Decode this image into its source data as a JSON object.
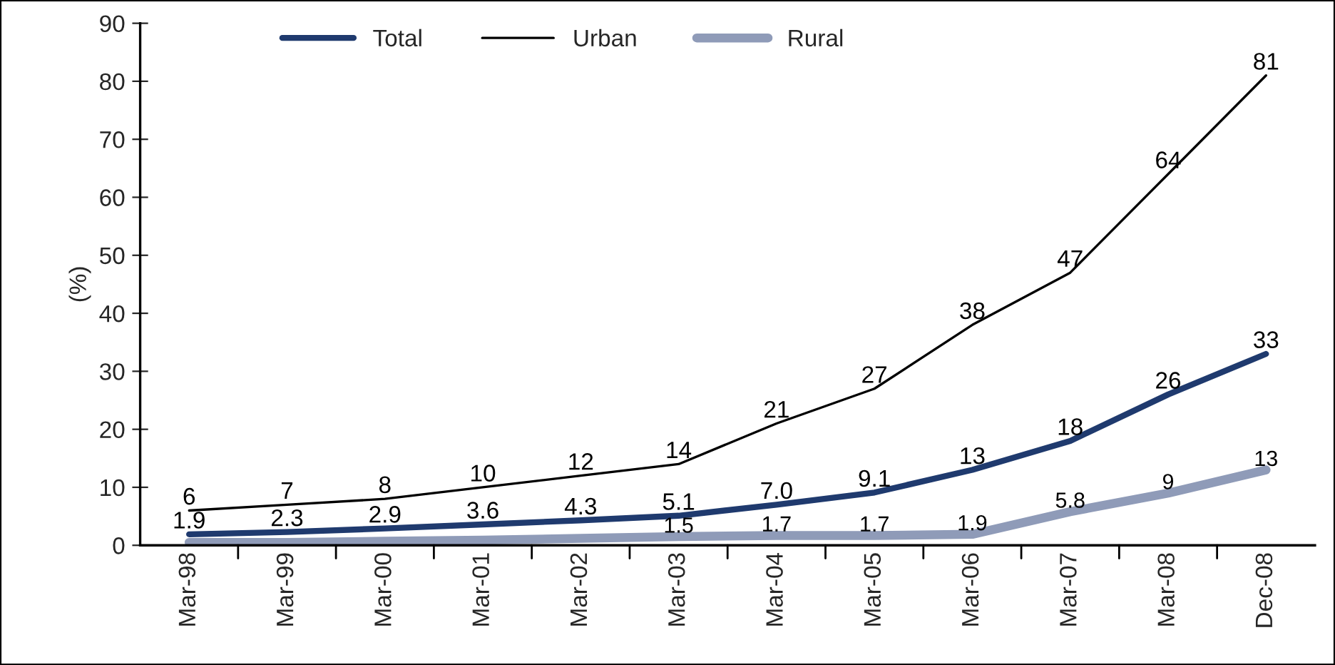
{
  "chart_data": {
    "type": "line",
    "ylabel": "(%)",
    "categories": [
      "Mar-98",
      "Mar-99",
      "Mar-00",
      "Mar-01",
      "Mar-02",
      "Mar-03",
      "Mar-04",
      "Mar-05",
      "Mar-06",
      "Mar-07",
      "Mar-08",
      "Dec-08"
    ],
    "series": [
      {
        "name": "Total",
        "color": "#1f3a6e",
        "values": [
          1.9,
          2.3,
          2.9,
          3.6,
          4.3,
          5.1,
          7.0,
          9.1,
          13,
          18,
          26,
          33
        ],
        "value_labels": [
          "1.9",
          "2.3",
          "2.9",
          "3.6",
          "4.3",
          "5.1",
          "7.0",
          "9.1",
          "13",
          "18",
          "26",
          "33"
        ]
      },
      {
        "name": "Urban",
        "color": "#000000",
        "values": [
          6,
          7,
          8,
          10,
          12,
          14,
          21,
          27,
          38,
          47,
          64,
          81
        ],
        "value_labels": [
          "6",
          "7",
          "8",
          "10",
          "12",
          "14",
          "21",
          "27",
          "38",
          "47",
          "64",
          "81"
        ]
      },
      {
        "name": "Rural",
        "color": "#8f9bb8",
        "values": [
          0.5,
          0.5,
          0.7,
          0.9,
          1.2,
          1.5,
          1.7,
          1.7,
          1.9,
          5.8,
          9,
          13
        ],
        "value_labels": [
          null,
          null,
          null,
          null,
          null,
          "1.5",
          "1.7",
          "1.7",
          "1.9",
          "5.8",
          "9",
          "13"
        ]
      }
    ],
    "ylim": [
      0,
      90
    ],
    "yticks": [
      0,
      10,
      20,
      30,
      40,
      50,
      60,
      70,
      80,
      90
    ],
    "grid": false,
    "legend": "top",
    "marker": "none",
    "line_style": "solid"
  }
}
